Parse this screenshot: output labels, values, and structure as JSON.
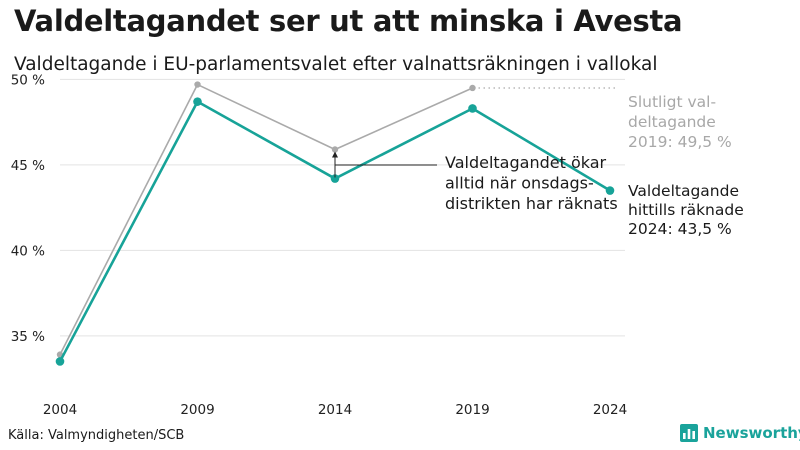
{
  "title": "Valdeltagandet ser ut att minska i Avesta",
  "subtitle": "Valdeltagande i EU-parlamentsvalet efter valnattsräkningen i vallokal",
  "source": "Källa: Valmyndigheten/SCB",
  "brand": {
    "name": "Newsworthy",
    "icon": "bar-chart-icon",
    "color": "#1aa39b"
  },
  "chart_data": {
    "type": "line",
    "title": "Valdeltagandet ser ut att minska i Avesta",
    "subtitle": "Valdeltagande i EU-parlamentsvalet efter valnattsräkningen i vallokal",
    "x": [
      2004,
      2009,
      2014,
      2019,
      2024
    ],
    "x_tick_labels": [
      "2004",
      "2009",
      "2014",
      "2019",
      "2024"
    ],
    "ylim": [
      33,
      50.2
    ],
    "y_ticks": [
      35,
      40,
      45,
      50
    ],
    "y_tick_labels": [
      "35 %",
      "40 %",
      "45 %",
      "50 %"
    ],
    "grid": true,
    "series": [
      {
        "key": "final",
        "x": [
          2004,
          2009,
          2014,
          2019
        ],
        "values": [
          33.9,
          49.7,
          45.9,
          49.5
        ],
        "color": "#aaaaaa"
      },
      {
        "key": "election_night",
        "x": [
          2004,
          2009,
          2014,
          2019,
          2024
        ],
        "values": [
          33.5,
          48.7,
          44.2,
          48.3,
          43.5
        ],
        "color": "#17a398"
      }
    ],
    "annotations": {
      "final_label": [
        "Slutligt val-",
        "deltagande",
        "2019: 49,5 %"
      ],
      "current_label": [
        "Valdeltagande",
        "hittills räknade",
        "2024: 43,5 %"
      ],
      "note_label": [
        "Valdeltagandet ökar",
        "alltid när onsdags-",
        "distrikten har räknats"
      ]
    }
  }
}
